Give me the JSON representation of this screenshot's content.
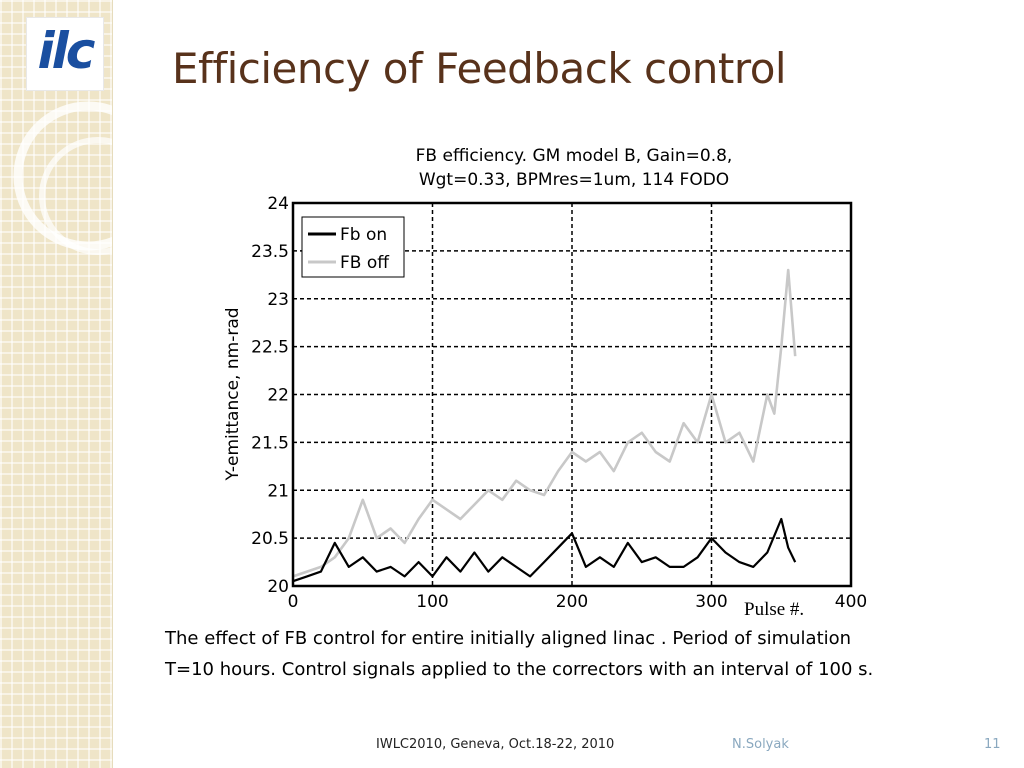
{
  "slide": {
    "logo_text": "ilc",
    "title": "Efficiency of Feedback control",
    "pulse_label": "Pulse #.",
    "caption_line1": "The effect of FB control for entire initially aligned linac . Period of simulation",
    "caption_line2": "T=10 hours. Control signals applied to the correctors with an interval of 100 s.",
    "footer_conference": "IWLC2010, Geneva, Oct.18-22, 2010",
    "footer_author": "N.Solyak",
    "page_number": "11"
  },
  "chart_data": {
    "type": "line",
    "title_line1": "FB efficiency. GM model B, Gain=0.8,",
    "title_line2": "Wgt=0.33, BPMres=1um, 114 FODO",
    "xlabel": "",
    "ylabel": "Y-emittance, nm-rad",
    "xlim": [
      0,
      400
    ],
    "ylim": [
      20,
      24
    ],
    "x_ticks": [
      0,
      100,
      200,
      300,
      400
    ],
    "y_ticks": [
      20,
      20.5,
      21,
      21.5,
      22,
      22.5,
      23,
      23.5,
      24
    ],
    "grid": true,
    "legend_position": "top-left",
    "series": [
      {
        "name": "Fb on",
        "color": "#000000",
        "x": [
          0,
          10,
          20,
          30,
          40,
          50,
          60,
          70,
          80,
          90,
          100,
          110,
          120,
          130,
          140,
          150,
          160,
          170,
          180,
          190,
          200,
          210,
          220,
          230,
          240,
          250,
          260,
          270,
          280,
          290,
          300,
          310,
          320,
          330,
          340,
          350,
          355,
          360
        ],
        "y": [
          20.05,
          20.1,
          20.15,
          20.45,
          20.2,
          20.3,
          20.15,
          20.2,
          20.1,
          20.25,
          20.1,
          20.3,
          20.15,
          20.35,
          20.15,
          20.3,
          20.2,
          20.1,
          20.25,
          20.4,
          20.55,
          20.2,
          20.3,
          20.2,
          20.45,
          20.25,
          20.3,
          20.2,
          20.2,
          20.3,
          20.5,
          20.35,
          20.25,
          20.2,
          20.35,
          20.7,
          20.4,
          20.25
        ]
      },
      {
        "name": "FB off",
        "color": "#c8c8c8",
        "x": [
          0,
          10,
          20,
          30,
          40,
          50,
          60,
          70,
          80,
          90,
          100,
          110,
          120,
          130,
          140,
          150,
          160,
          170,
          180,
          190,
          200,
          210,
          220,
          230,
          240,
          250,
          260,
          270,
          280,
          290,
          300,
          310,
          320,
          330,
          340,
          345,
          350,
          355,
          360
        ],
        "y": [
          20.1,
          20.15,
          20.2,
          20.3,
          20.5,
          20.9,
          20.5,
          20.6,
          20.45,
          20.7,
          20.9,
          20.8,
          20.7,
          20.85,
          21.0,
          20.9,
          21.1,
          21.0,
          20.95,
          21.2,
          21.4,
          21.3,
          21.4,
          21.2,
          21.5,
          21.6,
          21.4,
          21.3,
          21.7,
          21.5,
          22.0,
          21.5,
          21.6,
          21.3,
          22.0,
          21.8,
          22.5,
          23.3,
          22.4
        ]
      }
    ]
  }
}
